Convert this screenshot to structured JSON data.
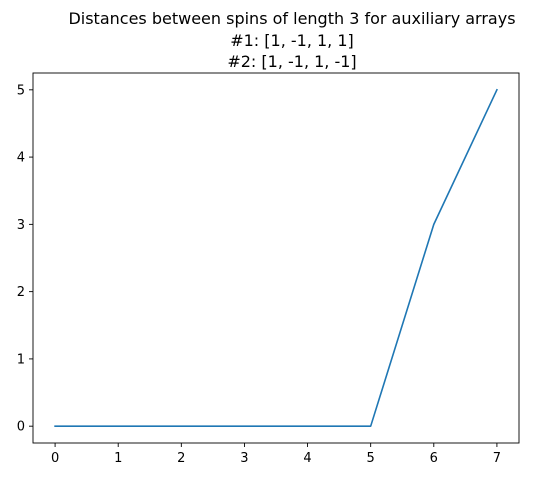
{
  "chart_data": {
    "type": "line",
    "title_lines": [
      "Distances between spins of length 3 for auxiliary arrays",
      "#1:  [1, -1, 1, 1]",
      "#2: [1, -1, 1, -1]"
    ],
    "xlabel": "",
    "ylabel": "",
    "x": [
      0,
      1,
      2,
      3,
      4,
      5,
      6,
      7
    ],
    "series": [
      {
        "values": [
          0,
          0,
          0,
          0,
          0,
          0,
          3,
          5
        ],
        "color": "#1f77b4"
      }
    ],
    "xticks": [
      0,
      1,
      2,
      3,
      4,
      5,
      6,
      7
    ],
    "yticks": [
      0,
      1,
      2,
      3,
      4,
      5
    ],
    "xlim": [
      -0.35,
      7.35
    ],
    "ylim": [
      -0.25,
      5.25
    ],
    "grid": false
  }
}
